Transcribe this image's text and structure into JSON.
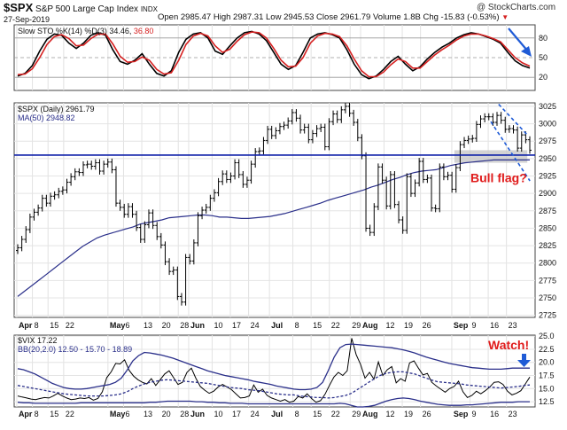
{
  "header": {
    "symbol": "$SPX",
    "name": "S&P 500 Large Cap Index",
    "exchange": "INDX",
    "date": "27-Sep-2019",
    "quote": "Open 2985.47  High 2987.31  Low 2945.53  Close 2961.79  Volume 1.8B  Chg -15.83 (-0.53%)",
    "watermark": "@ StockCharts.com"
  },
  "chart_data": [
    {
      "type": "line",
      "panel": "stochastic",
      "title": "Slow STO %K(14) %D(3) 34.46, 36.80",
      "legend": [
        "Slow STO %K(14) %D(3)",
        "34.46,",
        "36.80"
      ],
      "ylim": [
        0,
        100
      ],
      "ticks": [
        "80",
        "50",
        "20"
      ],
      "reference_lines": [
        80,
        50,
        20
      ],
      "series": [
        {
          "name": "%K(14)",
          "color": "#000000",
          "values": [
            22,
            26,
            38,
            60,
            78,
            86,
            84,
            72,
            64,
            72,
            84,
            88,
            84,
            62,
            44,
            40,
            46,
            56,
            40,
            26,
            22,
            30,
            58,
            78,
            86,
            88,
            80,
            60,
            55,
            68,
            80,
            88,
            90,
            86,
            76,
            58,
            40,
            32,
            38,
            58,
            80,
            86,
            88,
            85,
            80,
            62,
            40,
            24,
            18,
            22,
            32,
            44,
            52,
            40,
            30,
            36,
            48,
            58,
            66,
            72,
            80,
            85,
            88,
            86,
            82,
            78,
            72,
            58,
            45,
            38,
            34
          ]
        },
        {
          "name": "%D(3)",
          "color": "#d62020",
          "values": [
            24,
            25,
            33,
            50,
            70,
            82,
            85,
            79,
            68,
            69,
            79,
            86,
            86,
            71,
            52,
            43,
            44,
            51,
            46,
            32,
            25,
            27,
            46,
            70,
            83,
            87,
            83,
            68,
            58,
            63,
            75,
            85,
            89,
            88,
            80,
            64,
            46,
            36,
            37,
            50,
            72,
            83,
            87,
            86,
            82,
            68,
            48,
            30,
            21,
            21,
            28,
            39,
            48,
            44,
            34,
            34,
            44,
            54,
            62,
            69,
            77,
            83,
            86,
            86,
            83,
            79,
            74,
            62,
            50,
            42,
            37
          ]
        }
      ],
      "annotation": {
        "type": "arrow",
        "color": "#1f5bd6",
        "direction": "down-right"
      }
    },
    {
      "type": "line",
      "panel": "price",
      "title": "$SPX (Daily) 2961.79",
      "legend": [
        "$SPX (Daily)",
        "2961.79",
        "MA(50)",
        "2948.82"
      ],
      "ylim": [
        2722,
        3030
      ],
      "y_ticks": [
        2725,
        2750,
        2775,
        2800,
        2825,
        2850,
        2875,
        2900,
        2925,
        2950,
        2975,
        3000,
        3025
      ],
      "x_labels": [
        "Apr",
        "8",
        "15",
        "22",
        "May",
        "6",
        "13",
        "20",
        "28",
        "Jun",
        "10",
        "17",
        "24",
        "Jul",
        "8",
        "15",
        "22",
        "29",
        "Aug",
        "12",
        "19",
        "26",
        "Sep",
        "9",
        "16",
        "23"
      ],
      "series": [
        {
          "name": "SPX close",
          "color": "#000000",
          "values": [
            2822,
            2834,
            2848,
            2866,
            2873,
            2879,
            2893,
            2886,
            2896,
            2898,
            2903,
            2905,
            2916,
            2924,
            2931,
            2930,
            2941,
            2942,
            2939,
            2944,
            2932,
            2942,
            2945,
            2934,
            2886,
            2880,
            2870,
            2881,
            2870,
            2851,
            2834,
            2855,
            2872,
            2854,
            2838,
            2826,
            2802,
            2788,
            2790,
            2752,
            2744,
            2808,
            2803,
            2829,
            2868,
            2876,
            2880,
            2893,
            2901,
            2917,
            2928,
            2920,
            2925,
            2944,
            2927,
            2913,
            2919,
            2942,
            2960,
            2961,
            2976,
            2992,
            2983,
            2990,
            2996,
            2998,
            3004,
            3016,
            3008,
            2991,
            2995,
            2977,
            2986,
            2993,
            2995,
            2967,
            3003,
            3014,
            3006,
            3020,
            3025,
            3015,
            3002,
            2980,
            2954,
            2850,
            2844,
            2881,
            2938,
            2919,
            2882,
            2927,
            2884,
            2862,
            2847,
            2924,
            2900,
            2915,
            2946,
            2920,
            2922,
            2879,
            2878,
            2938,
            2924,
            2926,
            2906,
            2937,
            2970,
            2976,
            2978,
            2979,
            2999,
            3007,
            3010,
            3010,
            3002,
            3012,
            3005,
            2992,
            2993,
            2991,
            2965,
            2984,
            2977,
            2962
          ]
        },
        {
          "name": "MA(50)",
          "color": "#2a2f8a",
          "values": [
            2752,
            2760,
            2768,
            2776,
            2784,
            2792,
            2800,
            2808,
            2816,
            2824,
            2830,
            2836,
            2840,
            2843,
            2846,
            2849,
            2852,
            2856,
            2858,
            2860,
            2862,
            2865,
            2866,
            2867,
            2868,
            2869,
            2869,
            2868,
            2866,
            2866,
            2865,
            2864,
            2864,
            2865,
            2866,
            2867,
            2869,
            2871,
            2874,
            2877,
            2880,
            2883,
            2886,
            2890,
            2893,
            2896,
            2899,
            2902,
            2905,
            2909,
            2912,
            2916,
            2920,
            2923,
            2927,
            2930,
            2932,
            2933,
            2934,
            2937,
            2940,
            2942,
            2944,
            2945,
            2946,
            2947,
            2948,
            2948,
            2948,
            2948,
            2948,
            2948
          ]
        }
      ],
      "horizontal_line": {
        "value": 2955,
        "color": "#0d1fa8"
      },
      "annotation": {
        "text": "Bull flag?",
        "color": "#e01b1b"
      }
    },
    {
      "type": "line",
      "panel": "vix",
      "title": "$VIX 17.22",
      "legend": [
        "$VIX",
        "17.22",
        "BB(20,2.0)",
        "12.50 - 15.70 - 18.89"
      ],
      "ylim": [
        11.5,
        25.2
      ],
      "y_ticks": [
        12.5,
        15.0,
        17.5,
        20.0,
        22.5,
        25.0
      ],
      "series": [
        {
          "name": "VIX",
          "color": "#000000",
          "values": [
            13.6,
            13.4,
            13.2,
            13.0,
            12.9,
            13.1,
            13.3,
            13.2,
            13.6,
            14.1,
            13.6,
            13.2,
            12.9,
            13.0,
            13.2,
            13.1,
            13.3,
            12.8,
            13.1,
            14.4,
            17.1,
            18.2,
            19.8,
            19.7,
            20.5,
            18.5,
            17.4,
            16.7,
            16.2,
            15.9,
            16.9,
            15.6,
            16.7,
            17.8,
            18.4,
            17.1,
            15.8,
            16.2,
            18.1,
            18.9,
            17.0,
            15.4,
            14.7,
            14.1,
            14.5,
            15.3,
            15.8,
            15.3,
            14.8,
            14.0,
            13.2,
            13.3,
            13.6,
            15.7,
            14.3,
            14.9,
            13.7,
            13.2,
            12.9,
            12.6,
            12.9,
            12.4,
            12.6,
            13.5,
            13.2,
            14.0,
            13.1,
            12.4,
            12.7,
            13.9,
            15.6,
            17.2,
            18.1,
            17.5,
            18.4,
            24.6,
            21.5,
            19.6,
            17.0,
            18.1,
            16.8,
            20.1,
            17.5,
            18.6,
            19.2,
            16.1,
            16.9,
            16.4,
            19.9,
            20.3,
            18.9,
            17.6,
            17.9,
            16.2,
            15.5,
            14.9,
            14.3,
            15.0,
            15.4,
            16.4,
            14.4,
            13.3,
            13.7,
            14.5,
            14.0,
            14.6,
            15.3,
            16.2,
            16.3,
            15.8,
            14.5,
            13.8,
            14.1,
            14.6,
            15.9,
            17.2
          ]
        },
        {
          "name": "BB middle",
          "color": "#2a2f8a",
          "values": [
            15.6,
            15.4,
            15.2,
            15.0,
            14.8,
            14.6,
            14.4,
            14.2,
            14.0,
            13.9,
            13.8,
            13.7,
            13.6,
            13.6,
            13.6,
            13.6,
            13.7,
            13.8,
            14.0,
            14.4,
            15.0,
            15.5,
            15.9,
            16.2,
            16.4,
            16.6,
            16.7,
            16.6,
            16.5,
            16.4,
            16.3,
            16.2,
            16.1,
            16.0,
            15.8,
            15.6,
            15.4,
            15.2,
            15.1,
            15.0,
            14.8,
            14.7,
            14.6,
            14.4,
            14.2,
            14.0,
            13.9,
            13.8,
            13.8,
            13.6,
            13.5,
            13.4,
            13.3,
            13.3,
            13.2,
            13.3,
            13.5,
            13.7,
            14.1,
            14.8,
            15.5,
            16.2,
            16.9,
            17.5,
            17.9,
            18.1,
            18.2,
            18.2,
            18.0,
            17.8,
            17.4,
            17.0,
            16.6,
            16.3,
            16.2,
            16.1,
            16.0,
            15.9,
            15.7,
            15.6,
            15.5,
            15.4,
            15.3,
            15.2,
            15.1,
            15.2,
            15.3,
            15.4,
            15.6,
            15.7
          ]
        },
        {
          "name": "BB upper",
          "color": "#2a2f8a",
          "values": [
            18.8,
            18.6,
            18.2,
            17.8,
            17.2,
            16.6,
            16.0,
            15.6,
            15.2,
            15.0,
            14.9,
            14.9,
            15.0,
            15.2,
            15.4,
            15.6,
            15.8,
            16.2,
            17.0,
            18.5,
            20.3,
            21.3,
            21.9,
            21.8,
            21.6,
            21.4,
            21.1,
            20.8,
            20.4,
            20.0,
            19.6,
            19.2,
            18.8,
            18.4,
            18.1,
            17.8,
            17.5,
            17.3,
            17.1,
            16.9,
            16.7,
            16.4,
            16.2,
            16.0,
            15.8,
            15.5,
            15.3,
            15.1,
            14.9,
            14.8,
            14.8,
            14.9,
            15.2,
            16.2,
            18.5,
            21.0,
            22.8,
            23.4,
            23.5,
            23.4,
            23.3,
            23.2,
            23.1,
            23.0,
            22.9,
            22.8,
            22.6,
            22.4,
            22.1,
            21.8,
            21.4,
            21.0,
            20.7,
            20.4,
            20.1,
            19.8,
            19.6,
            19.4,
            19.2,
            19.0,
            18.9,
            18.8,
            18.7,
            18.7,
            18.7,
            18.8,
            18.9,
            18.9,
            18.9,
            18.9
          ]
        },
        {
          "name": "BB lower",
          "color": "#2a2f8a",
          "values": [
            12.4,
            12.3,
            12.3,
            12.2,
            12.2,
            12.2,
            12.2,
            12.2,
            12.2,
            12.2,
            12.2,
            12.3,
            12.3,
            12.3,
            12.3,
            12.3,
            12.3,
            12.3,
            12.3,
            12.3,
            12.3,
            12.3,
            12.3,
            12.4,
            12.4,
            12.5,
            12.6,
            12.6,
            12.6,
            12.6,
            12.6,
            12.5,
            12.5,
            12.4,
            12.4,
            12.3,
            12.3,
            12.2,
            12.2,
            12.2,
            12.1,
            12.1,
            12.1,
            12.1,
            12.1,
            12.1,
            12.1,
            12.1,
            12.1,
            12.1,
            12.1,
            12.1,
            12.1,
            12.1,
            12.1,
            12.1,
            12.2,
            12.1,
            11.8,
            11.5,
            11.5,
            11.6,
            11.8,
            12.2,
            12.6,
            12.9,
            13.1,
            13.2,
            13.1,
            12.9,
            12.6,
            12.4,
            12.2,
            12.0,
            11.9,
            11.8,
            11.8,
            11.8,
            11.9,
            11.9,
            12.0,
            12.1,
            12.2,
            12.3,
            12.4,
            12.4,
            12.4,
            12.5,
            12.5,
            12.5
          ]
        }
      ],
      "annotation": {
        "text": "Watch!",
        "color": "#e01b1b"
      },
      "x_labels": [
        "Apr",
        "8",
        "15",
        "22",
        "May",
        "6",
        "13",
        "20",
        "28",
        "Jun",
        "10",
        "17",
        "24",
        "Jul",
        "8",
        "15",
        "22",
        "29",
        "Aug",
        "12",
        "19",
        "26",
        "Sep",
        "9",
        "16",
        "23"
      ]
    }
  ]
}
